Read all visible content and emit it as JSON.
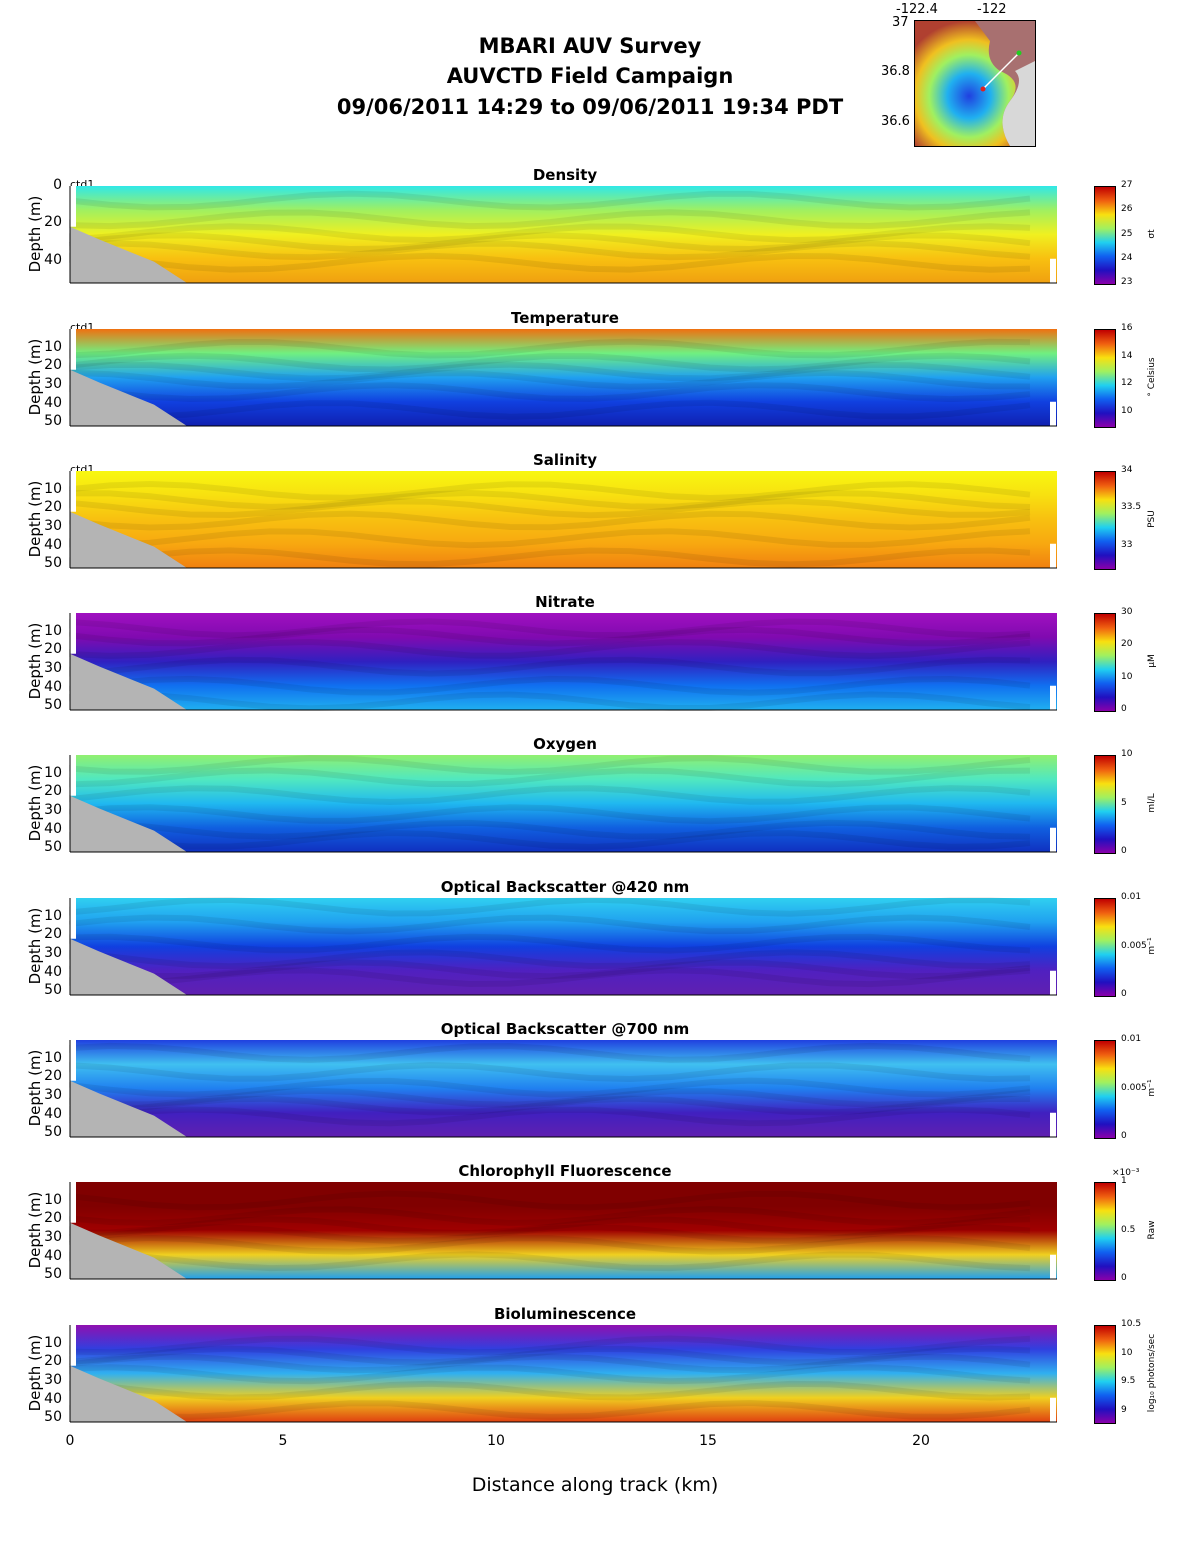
{
  "header": {
    "title1": "MBARI AUV Survey",
    "title2": "AUVCTD Field Campaign",
    "title3": "09/06/2011 14:29  to 09/06/2011 19:34 PDT"
  },
  "inset_map": {
    "lon_ticks": [
      "-122.4",
      "-122"
    ],
    "lat_ticks": [
      "37",
      "36.8",
      "36.6"
    ]
  },
  "chart_data": {
    "type": "heatmap",
    "xlabel": "Distance along track (km)",
    "xlim": [
      0,
      23.3
    ],
    "x_ticks": [
      "0",
      "5",
      "10",
      "15",
      "20"
    ],
    "panels": [
      {
        "title": "Density",
        "ylabel": "Depth (m)",
        "yticks": [
          "0",
          "20",
          "40"
        ],
        "ylim": [
          0,
          52
        ],
        "clim": [
          23,
          27
        ],
        "cticks": [
          "27",
          "26",
          "25",
          "24",
          "23"
        ],
        "units": "σt",
        "tag": "ctd1",
        "colors": [
          "#30e8e8",
          "#a0f060",
          "#f0f020",
          "#f8c010",
          "#f0a010"
        ]
      },
      {
        "title": "Temperature",
        "ylabel": "Depth (m)",
        "yticks": [
          "10",
          "20",
          "30",
          "40",
          "50"
        ],
        "ylim": [
          0,
          52
        ],
        "clim": [
          9,
          16
        ],
        "cticks": [
          "16",
          "14",
          "12",
          "10"
        ],
        "units": "° Celsius",
        "tag": "ctd1",
        "colors": [
          "#f07010",
          "#70f080",
          "#20a0f0",
          "#1040e0",
          "#1020b0"
        ]
      },
      {
        "title": "Salinity",
        "ylabel": "Depth (m)",
        "yticks": [
          "10",
          "20",
          "30",
          "40",
          "50"
        ],
        "ylim": [
          0,
          52
        ],
        "clim": [
          32.7,
          34
        ],
        "cticks": [
          "34",
          "33.5",
          "33"
        ],
        "units": "PSU",
        "tag": "ctd1",
        "colors": [
          "#f8f810",
          "#f8e010",
          "#f8c010",
          "#f8a810",
          "#f08010"
        ]
      },
      {
        "title": "Nitrate",
        "ylabel": "Depth (m)",
        "yticks": [
          "10",
          "20",
          "30",
          "40",
          "50"
        ],
        "ylim": [
          0,
          52
        ],
        "clim": [
          0,
          30
        ],
        "cticks": [
          "30",
          "20",
          "10",
          "0"
        ],
        "units": "μM",
        "tag": "",
        "colors": [
          "#a010c0",
          "#800ab0",
          "#3020c0",
          "#1070f0",
          "#20b0f0"
        ]
      },
      {
        "title": "Oxygen",
        "ylabel": "Depth (m)",
        "yticks": [
          "10",
          "20",
          "30",
          "40",
          "50"
        ],
        "ylim": [
          0,
          52
        ],
        "clim": [
          0,
          10
        ],
        "cticks": [
          "10",
          "5",
          "0"
        ],
        "units": "ml/L",
        "tag": "",
        "colors": [
          "#90f070",
          "#50e8c0",
          "#20b8f0",
          "#1060e0",
          "#1030c0"
        ]
      },
      {
        "title": "Optical Backscatter @420 nm",
        "ylabel": "Depth (m)",
        "yticks": [
          "10",
          "20",
          "30",
          "40",
          "50"
        ],
        "ylim": [
          0,
          52
        ],
        "clim": [
          0,
          0.01
        ],
        "cticks": [
          "0.01",
          "0.005",
          "0"
        ],
        "units": "m⁻¹",
        "tag": "",
        "colors": [
          "#30d0f0",
          "#20a0f0",
          "#1040e0",
          "#5020c0",
          "#6020b0"
        ]
      },
      {
        "title": "Optical Backscatter @700 nm",
        "ylabel": "Depth (m)",
        "yticks": [
          "10",
          "20",
          "30",
          "40",
          "50"
        ],
        "ylim": [
          0,
          52
        ],
        "clim": [
          0,
          0.01
        ],
        "cticks": [
          "0.01",
          "0.005",
          "0"
        ],
        "units": "m⁻¹",
        "tag": "",
        "colors": [
          "#2040e0",
          "#40c0f0",
          "#2080f0",
          "#4020c0",
          "#6020b0"
        ]
      },
      {
        "title": "Chlorophyll Fluorescence",
        "ylabel": "Depth (m)",
        "yticks": [
          "10",
          "20",
          "30",
          "40",
          "50"
        ],
        "ylim": [
          0,
          52
        ],
        "clim": [
          0,
          1
        ],
        "cticks": [
          "1",
          "0.5",
          "0"
        ],
        "units": "Raw",
        "scale": "×10⁻³",
        "tag": "",
        "colors": [
          "#800000",
          "#800000",
          "#a00000",
          "#f0d020",
          "#20a0f0"
        ]
      },
      {
        "title": "Bioluminescence",
        "ylabel": "Depth (m)",
        "yticks": [
          "10",
          "20",
          "30",
          "40",
          "50"
        ],
        "ylim": [
          0,
          52
        ],
        "clim": [
          8.8,
          10.5
        ],
        "cticks": [
          "10.5",
          "10",
          "9.5",
          "9"
        ],
        "units": "log₁₀ photons/sec",
        "tag": "",
        "colors": [
          "#9010b0",
          "#3040e0",
          "#30b0f0",
          "#f0d020",
          "#e04010"
        ]
      }
    ]
  }
}
